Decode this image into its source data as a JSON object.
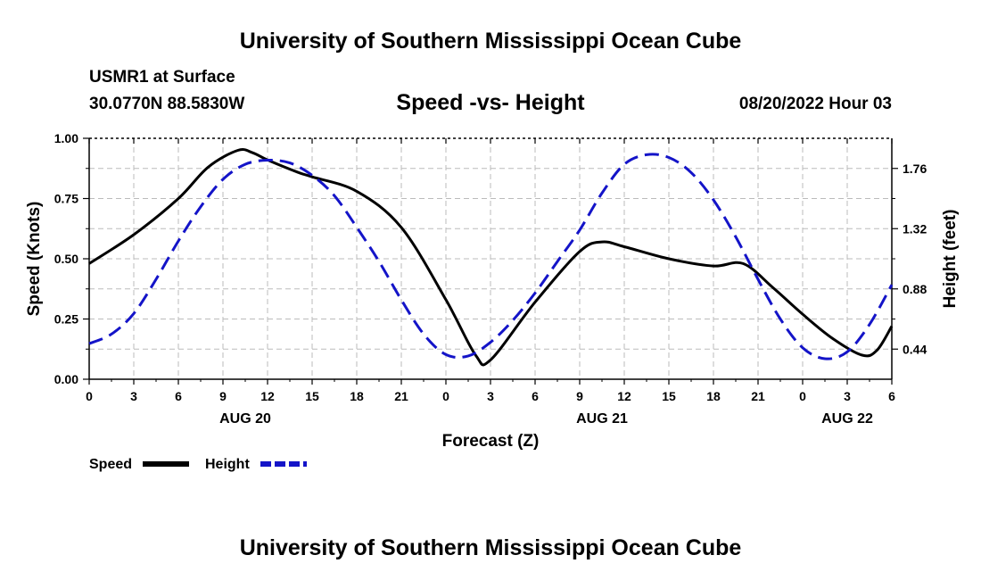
{
  "header": {
    "title": "University of Southern Mississippi Ocean Cube",
    "station": "USMR1 at Surface",
    "location": "30.0770N  88.5830W",
    "datetime": "08/20/2022 Hour 03"
  },
  "footer": {
    "title": "University of Southern Mississippi Ocean Cube"
  },
  "chart_data": {
    "type": "line",
    "title": "Speed -vs- Height",
    "xlabel": "Forecast (Z)",
    "ylabel": "Speed (Knots)",
    "y2label": "Height (feet)",
    "x_range_hours": [
      0,
      54
    ],
    "ylim": [
      0,
      1
    ],
    "y2lim": [
      0.22,
      1.98
    ],
    "y_ticks": [
      "0.00",
      "0.25",
      "0.50",
      "0.75",
      "1.00"
    ],
    "y2_ticks": [
      "0.44",
      "0.88",
      "1.32",
      "1.76"
    ],
    "x_tick_labels": [
      "0",
      "3",
      "6",
      "9",
      "12",
      "15",
      "18",
      "21",
      "0",
      "3",
      "6",
      "9",
      "12",
      "15",
      "18",
      "21",
      "0",
      "3",
      "6"
    ],
    "date_labels": [
      {
        "label": "AUG 20",
        "hour": 10.5
      },
      {
        "label": "AUG 21",
        "hour": 34.5
      },
      {
        "label": "AUG 22",
        "hour": 51
      }
    ],
    "grid": true,
    "legend": [
      {
        "name": "Speed",
        "color": "#000000",
        "style": "solid"
      },
      {
        "name": "Height",
        "color": "#1414c8",
        "style": "dashed"
      }
    ],
    "series": [
      {
        "name": "Speed",
        "axis": "left",
        "color": "#000000",
        "x": [
          0,
          3,
          6,
          8,
          10,
          11,
          12,
          14,
          15,
          18,
          21,
          24,
          26,
          27,
          30,
          33,
          34.5,
          36,
          39,
          42,
          44,
          46,
          48,
          50,
          52,
          53,
          54
        ],
        "values": [
          0.48,
          0.6,
          0.75,
          0.88,
          0.95,
          0.94,
          0.91,
          0.86,
          0.84,
          0.78,
          0.63,
          0.33,
          0.1,
          0.08,
          0.32,
          0.53,
          0.57,
          0.55,
          0.5,
          0.47,
          0.48,
          0.38,
          0.27,
          0.17,
          0.1,
          0.12,
          0.22
        ]
      },
      {
        "name": "Height",
        "axis": "right",
        "color": "#1414c8",
        "x": [
          0,
          1.5,
          3,
          4.5,
          6,
          7.5,
          9,
          10.5,
          12,
          13.5,
          15,
          16.5,
          18,
          19.5,
          21,
          22.5,
          24,
          25.5,
          27,
          28.5,
          30,
          31.5,
          33,
          34.5,
          36,
          37.5,
          39,
          40.5,
          42,
          43.5,
          45,
          46.5,
          48,
          49.5,
          51,
          52.5,
          54
        ],
        "values": [
          0.48,
          0.55,
          0.7,
          0.95,
          1.23,
          1.48,
          1.68,
          1.79,
          1.82,
          1.8,
          1.71,
          1.56,
          1.33,
          1.08,
          0.8,
          0.55,
          0.4,
          0.39,
          0.49,
          0.65,
          0.85,
          1.08,
          1.31,
          1.58,
          1.79,
          1.86,
          1.84,
          1.73,
          1.53,
          1.26,
          0.95,
          0.66,
          0.45,
          0.37,
          0.42,
          0.62,
          0.91
        ]
      }
    ]
  }
}
